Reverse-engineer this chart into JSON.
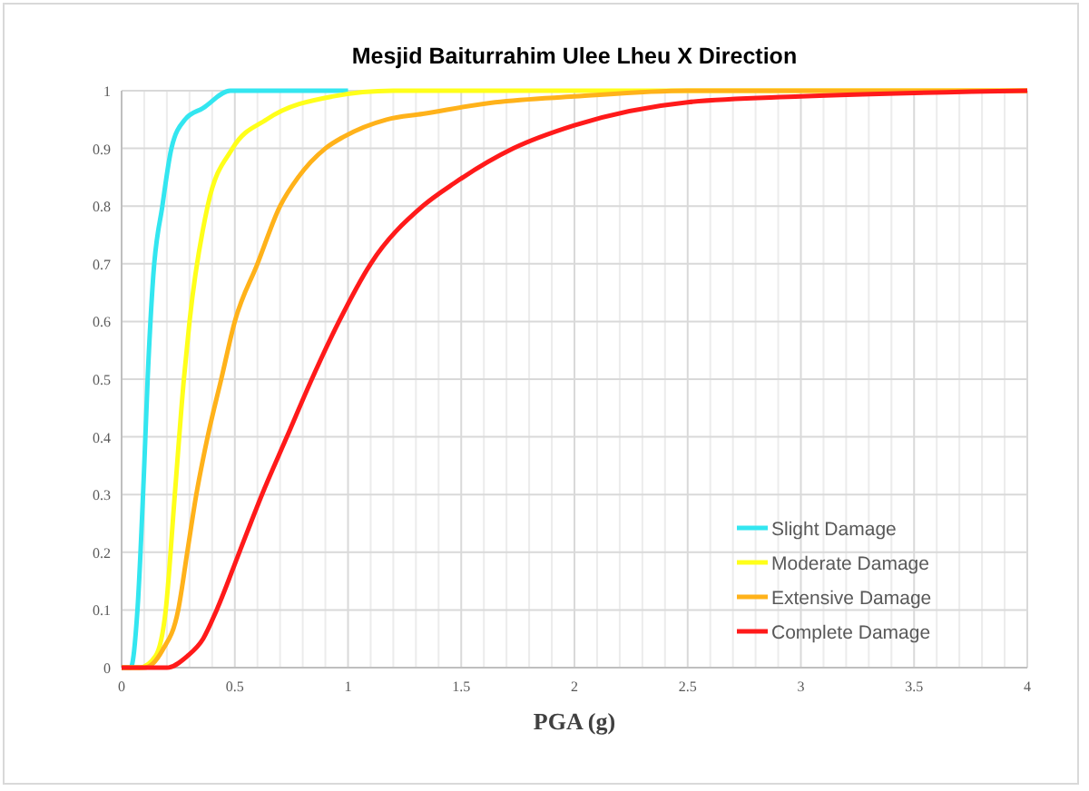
{
  "chart_data": {
    "type": "line",
    "title": "Mesjid Baiturrahim Ulee Lheu X Direction",
    "xlabel": "PGA (g)",
    "xlim": [
      0,
      4
    ],
    "xticks": [
      0,
      0.5,
      1,
      1.5,
      2,
      2.5,
      3,
      3.5,
      4
    ],
    "ylim": [
      0,
      1
    ],
    "yticks": [
      0,
      0.1,
      0.2,
      0.3,
      0.4,
      0.5,
      0.6,
      0.7,
      0.8,
      0.9,
      1
    ],
    "grid": true,
    "legend": "bottom right",
    "marker": "none",
    "line_style": "solid",
    "series": [
      {
        "name": "Slight Damage",
        "color": "#33e6f0",
        "x": [
          0,
          0.04,
          0.07,
          0.1,
          0.115,
          0.14,
          0.18,
          0.22,
          0.28,
          0.36,
          0.48,
          1
        ],
        "values": [
          0,
          0,
          0.1,
          0.35,
          0.5,
          0.68,
          0.8,
          0.9,
          0.95,
          0.97,
          1,
          1
        ]
      },
      {
        "name": "Moderate Damage",
        "color": "#ffff1a",
        "x": [
          0,
          0.08,
          0.15,
          0.195,
          0.235,
          0.275,
          0.3,
          0.38,
          0.49,
          0.64,
          0.93,
          1.2,
          2,
          4
        ],
        "values": [
          0,
          0,
          0.02,
          0.1,
          0.3,
          0.5,
          0.6,
          0.8,
          0.9,
          0.95,
          0.99,
          1,
          1,
          1
        ]
      },
      {
        "name": "Extensive Damage",
        "color": "#ffb21a",
        "x": [
          0,
          0.1,
          0.18,
          0.25,
          0.29,
          0.33,
          0.38,
          0.44,
          0.5,
          0.6,
          0.7,
          0.78,
          0.9,
          0.98,
          1.17,
          1.33,
          1.65,
          2,
          2.5,
          4
        ],
        "values": [
          0,
          0,
          0.03,
          0.1,
          0.2,
          0.3,
          0.4,
          0.5,
          0.6,
          0.7,
          0.8,
          0.85,
          0.9,
          0.92,
          0.95,
          0.96,
          0.98,
          0.99,
          1,
          1
        ]
      },
      {
        "name": "Complete Damage",
        "color": "#ff1a1a",
        "x": [
          0,
          0.2,
          0.29,
          0.36,
          0.42,
          0.52,
          0.62,
          0.73,
          0.84,
          0.96,
          1.1,
          1.33,
          1.47,
          1.73,
          2,
          2.5,
          3,
          4
        ],
        "values": [
          0,
          0,
          0.02,
          0.05,
          0.1,
          0.2,
          0.3,
          0.4,
          0.5,
          0.6,
          0.7,
          0.8,
          0.84,
          0.9,
          0.94,
          0.98,
          0.99,
          1
        ]
      }
    ]
  }
}
